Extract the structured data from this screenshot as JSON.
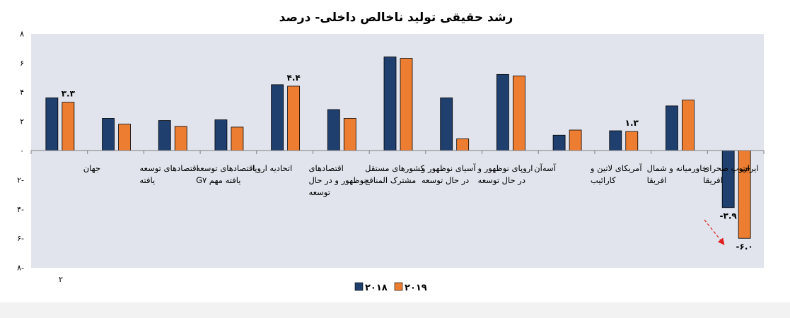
{
  "chart_data": {
    "type": "bar",
    "title": "رشد حقیقی تولید ناخالص داخلی- درصد",
    "ylim": [
      -8,
      8
    ],
    "yticks": [
      "۸",
      "۶",
      "۴",
      "۲",
      "۰",
      "۲-",
      "۴-",
      "۶-",
      "۸-"
    ],
    "ytick_values": [
      8,
      6,
      4,
      2,
      0,
      -2,
      -4,
      -6,
      -8
    ],
    "grid": false,
    "legend_position": "bottom",
    "categories": [
      [
        "جهان"
      ],
      [
        "اقتصادهای توسعه",
        "یافته"
      ],
      [
        "اقتصادهای توسعه",
        "یافته مهم G۷"
      ],
      [
        "اتحادیه اروپا"
      ],
      [
        "اقتصادهای",
        "نوظهور و در حال",
        "توسعه"
      ],
      [
        "کشورهای مستقل",
        "مشترک المنافع"
      ],
      [
        "آسیای نوظهور و",
        "در حال توسعه"
      ],
      [
        "اروپای نوظهور و",
        "در حال توسعه"
      ],
      [
        "آسه‌آن"
      ],
      [
        "آمریکای لاتین و",
        "کارائیب"
      ],
      [
        "خاورمیانه و شمال",
        "افریقا"
      ],
      [
        "جنوب صحرای",
        "افریقا"
      ],
      [
        "ایران"
      ]
    ],
    "series": [
      {
        "name": "۲۰۱۸",
        "color": "#1f3f6e",
        "values": [
          3.6,
          2.2,
          2.05,
          2.1,
          4.5,
          2.8,
          6.4,
          3.6,
          5.2,
          1.05,
          1.35,
          3.05,
          -3.9
        ]
      },
      {
        "name": "۲۰۱۹",
        "color": "#ed7d31",
        "values": [
          3.3,
          1.8,
          1.65,
          1.6,
          4.4,
          2.2,
          6.3,
          0.8,
          5.1,
          1.4,
          1.3,
          3.45,
          -6.0
        ]
      }
    ],
    "data_labels": [
      {
        "text": "۳.۳",
        "category_index": 0,
        "series_index": 1
      },
      {
        "text": "۴.۴",
        "category_index": 4,
        "series_index": 1
      },
      {
        "text": "۱.۳",
        "category_index": 10,
        "series_index": 1
      },
      {
        "text": "-۳.۹",
        "category_index": 12,
        "series_index": 0
      },
      {
        "text": "-۶.۰",
        "category_index": 12,
        "series_index": 1
      }
    ],
    "footnote": "۲"
  },
  "colors": {
    "plot_background": "#e1e4ec",
    "axis": "#7f7f7f",
    "arrow": "#e02020"
  }
}
